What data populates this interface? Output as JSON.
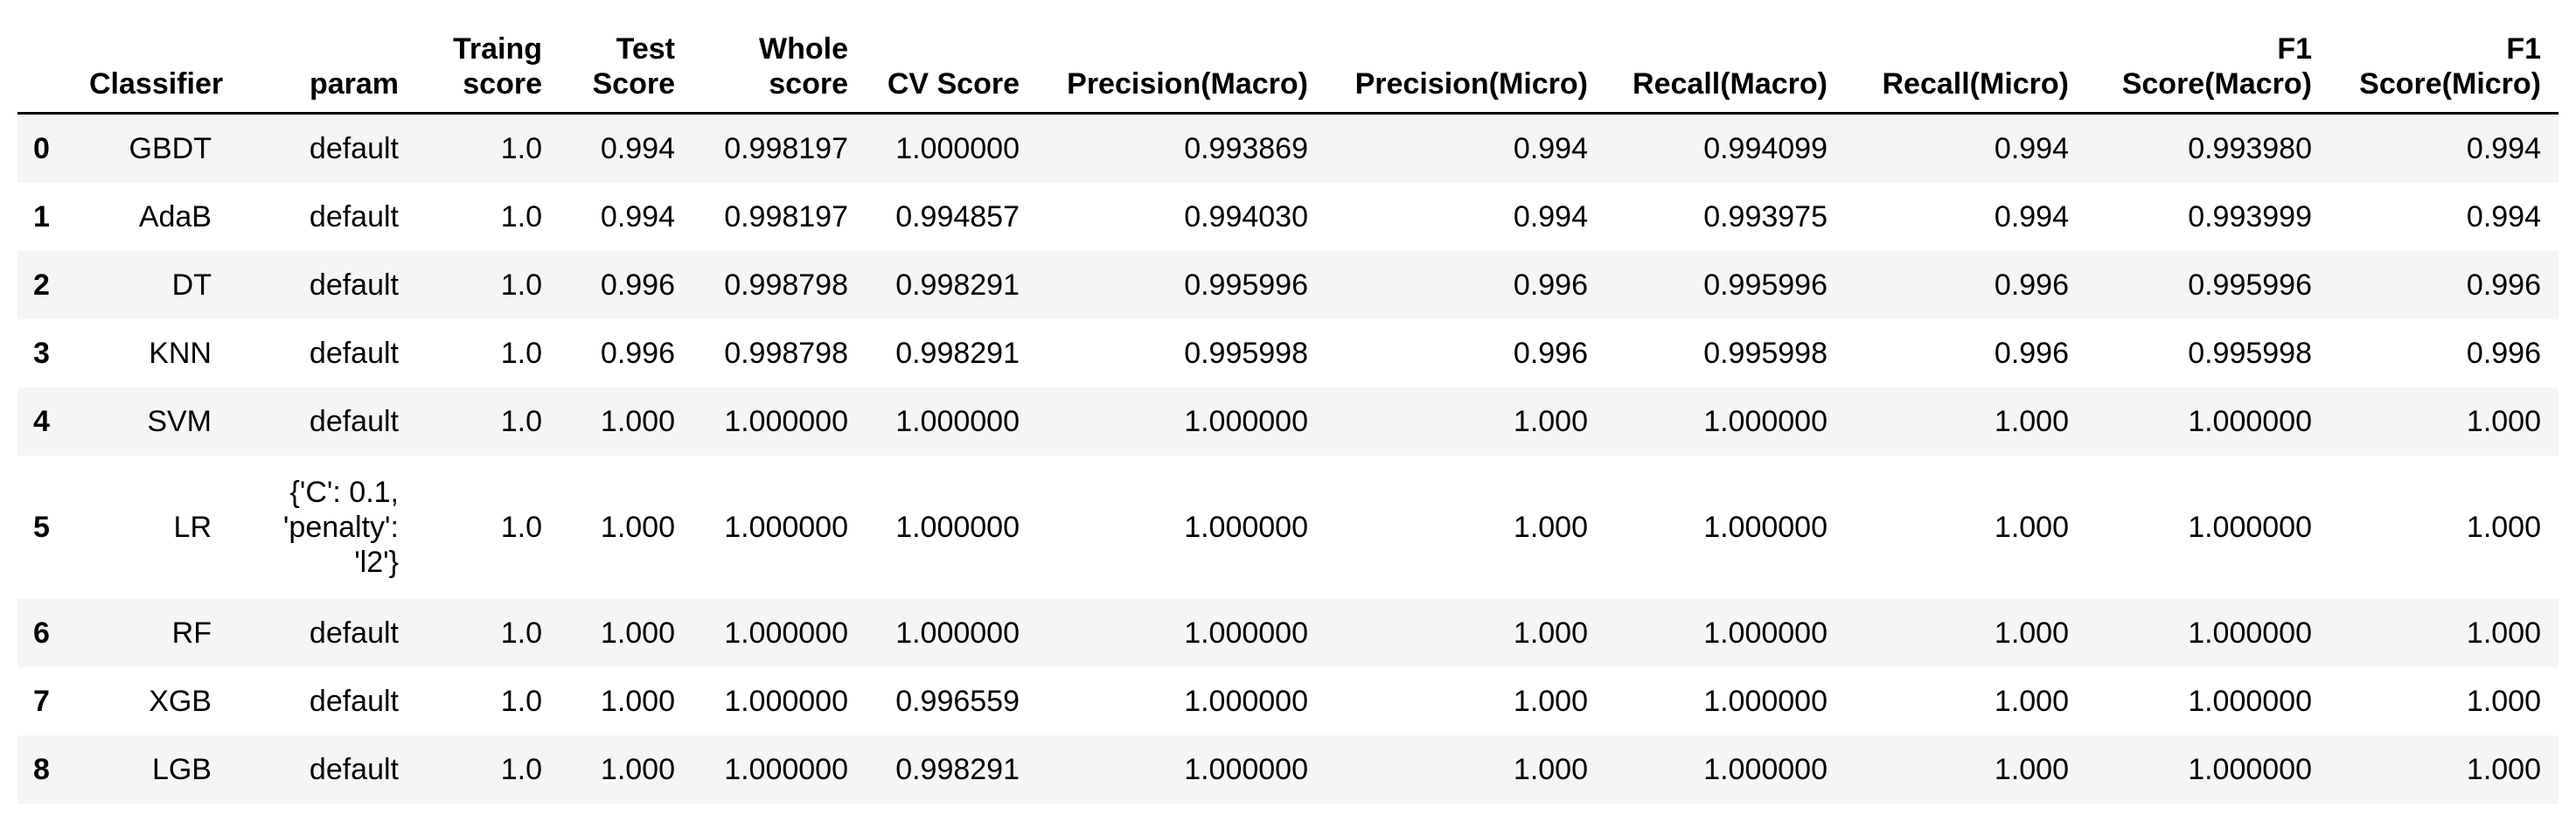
{
  "table": {
    "columns": [
      "",
      "Classifier",
      "param",
      "Traing score",
      "Test Score",
      "Whole score",
      "CV Score",
      "Precision(Macro)",
      "Precision(Micro)",
      "Recall(Macro)",
      "Recall(Micro)",
      "F1 Score(Macro)",
      "F1 Score(Micro)"
    ],
    "rows": [
      [
        "0",
        "GBDT",
        "default",
        "1.0",
        "0.994",
        "0.998197",
        "1.000000",
        "0.993869",
        "0.994",
        "0.994099",
        "0.994",
        "0.993980",
        "0.994"
      ],
      [
        "1",
        "AdaB",
        "default",
        "1.0",
        "0.994",
        "0.998197",
        "0.994857",
        "0.994030",
        "0.994",
        "0.993975",
        "0.994",
        "0.993999",
        "0.994"
      ],
      [
        "2",
        "DT",
        "default",
        "1.0",
        "0.996",
        "0.998798",
        "0.998291",
        "0.995996",
        "0.996",
        "0.995996",
        "0.996",
        "0.995996",
        "0.996"
      ],
      [
        "3",
        "KNN",
        "default",
        "1.0",
        "0.996",
        "0.998798",
        "0.998291",
        "0.995998",
        "0.996",
        "0.995998",
        "0.996",
        "0.995998",
        "0.996"
      ],
      [
        "4",
        "SVM",
        "default",
        "1.0",
        "1.000",
        "1.000000",
        "1.000000",
        "1.000000",
        "1.000",
        "1.000000",
        "1.000",
        "1.000000",
        "1.000"
      ],
      [
        "5",
        "LR",
        "{'C': 0.1, 'penalty': 'l2'}",
        "1.0",
        "1.000",
        "1.000000",
        "1.000000",
        "1.000000",
        "1.000",
        "1.000000",
        "1.000",
        "1.000000",
        "1.000"
      ],
      [
        "6",
        "RF",
        "default",
        "1.0",
        "1.000",
        "1.000000",
        "1.000000",
        "1.000000",
        "1.000",
        "1.000000",
        "1.000",
        "1.000000",
        "1.000"
      ],
      [
        "7",
        "XGB",
        "default",
        "1.0",
        "1.000",
        "1.000000",
        "0.996559",
        "1.000000",
        "1.000",
        "1.000000",
        "1.000",
        "1.000000",
        "1.000"
      ],
      [
        "8",
        "LGB",
        "default",
        "1.0",
        "1.000",
        "1.000000",
        "0.998291",
        "1.000000",
        "1.000",
        "1.000000",
        "1.000",
        "1.000000",
        "1.000"
      ]
    ]
  }
}
